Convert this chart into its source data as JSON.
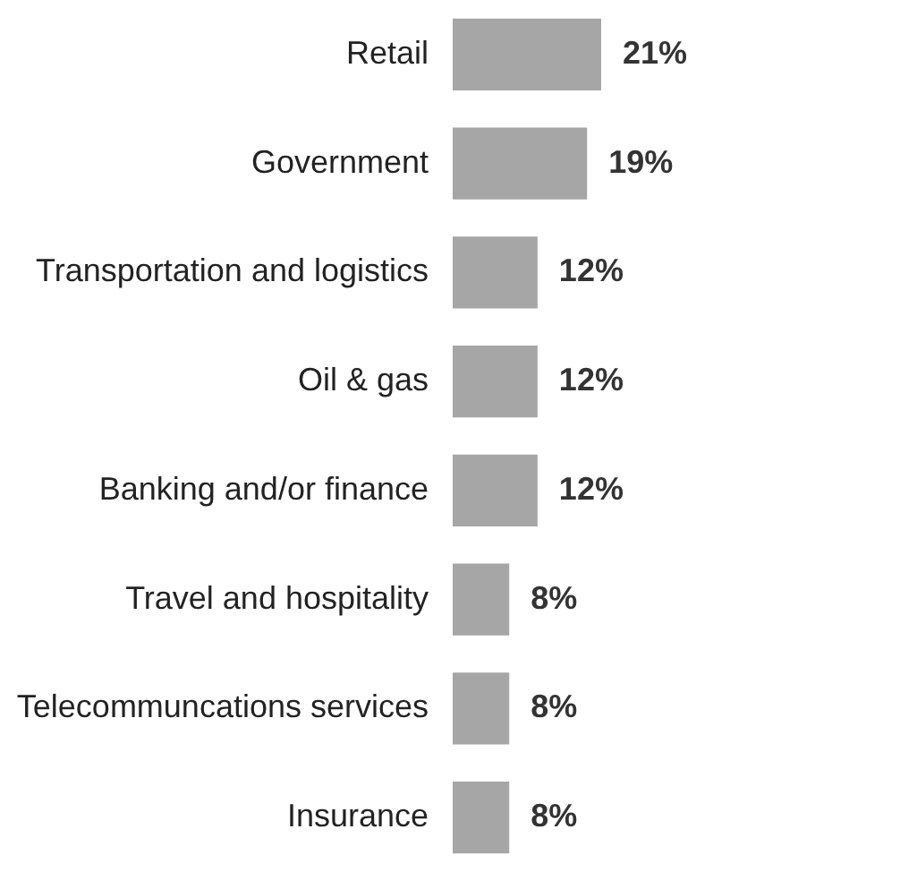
{
  "chart_data": {
    "type": "bar",
    "orientation": "horizontal",
    "categories": [
      "Retail",
      "Government",
      "Transportation and logistics",
      "Oil & gas",
      "Banking and/or finance",
      "Travel and hospitality",
      "Telecommuncations services",
      "Insurance"
    ],
    "values": [
      21,
      19,
      12,
      12,
      12,
      8,
      8,
      8
    ],
    "value_labels": [
      "21%",
      "19%",
      "12%",
      "12%",
      "12%",
      "8%",
      "8%",
      "8%"
    ],
    "color": "#a6a6a6"
  }
}
